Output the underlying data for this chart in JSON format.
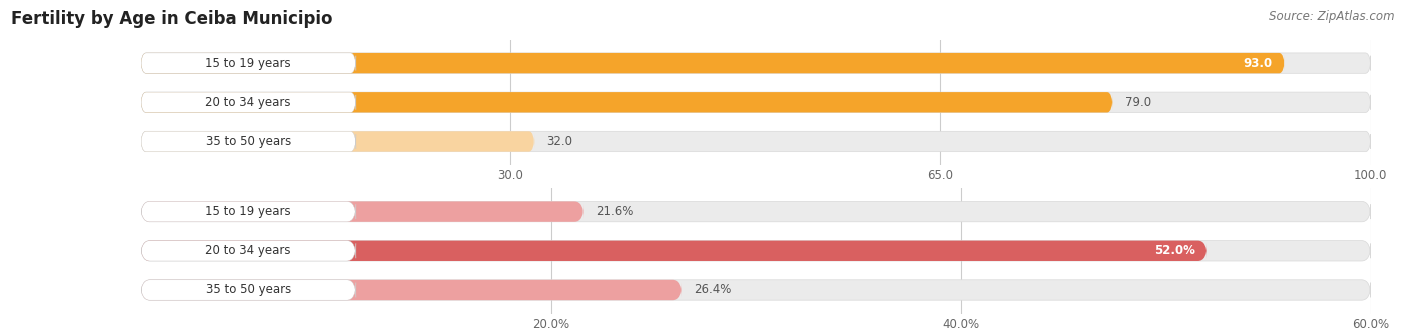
{
  "title": "Fertility by Age in Ceiba Municipio",
  "source": "Source: ZipAtlas.com",
  "top_section": {
    "categories": [
      "15 to 19 years",
      "20 to 34 years",
      "35 to 50 years"
    ],
    "values": [
      93.0,
      79.0,
      32.0
    ],
    "xlim": [
      0,
      100
    ],
    "xticks": [
      30.0,
      65.0,
      100.0
    ],
    "bar_colors": [
      "#F5A42A",
      "#F5A42A",
      "#F9D4A0"
    ],
    "bar_bg_color": "#EBEBEB",
    "value_labels": [
      "93.0",
      "79.0",
      "32.0"
    ],
    "label_inside": [
      true,
      false,
      false
    ]
  },
  "bottom_section": {
    "categories": [
      "15 to 19 years",
      "20 to 34 years",
      "35 to 50 years"
    ],
    "values": [
      21.6,
      52.0,
      26.4
    ],
    "xlim": [
      0,
      60
    ],
    "xticks": [
      20.0,
      40.0,
      60.0
    ],
    "xtick_labels": [
      "20.0%",
      "40.0%",
      "60.0%"
    ],
    "bar_colors": [
      "#EDA0A0",
      "#D96060",
      "#EDA0A0"
    ],
    "bar_bg_color": "#EBEBEB",
    "value_labels": [
      "21.6%",
      "52.0%",
      "26.4%"
    ],
    "label_inside": [
      false,
      true,
      false
    ]
  },
  "label_fontsize": 8.5,
  "title_fontsize": 12,
  "source_fontsize": 8.5,
  "bar_height": 0.52,
  "label_color": "#444444",
  "bg_color": "#FFFFFF"
}
